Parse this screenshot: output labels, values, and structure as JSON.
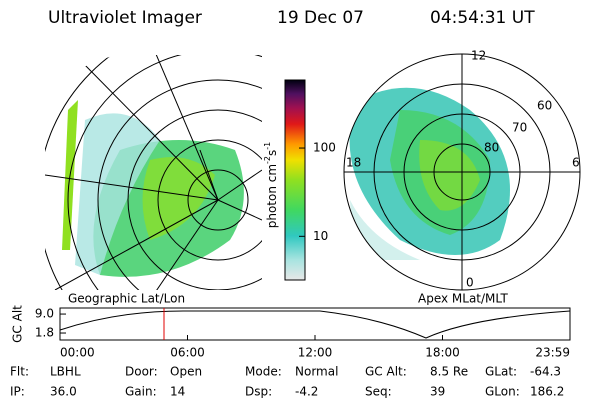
{
  "header": {
    "title": "Ultraviolet Imager",
    "date": "19 Dec 07",
    "time": "04:54:31 UT"
  },
  "colorbar": {
    "unit": {
      "base": "photon cm",
      "exp1": "-2",
      "s": "s",
      "exp2": "-1"
    },
    "clim": [
      3.2,
      590
    ],
    "ticks": [
      10,
      100
    ],
    "log": true
  },
  "left_panel": {
    "label": "Geographic Lat/Lon"
  },
  "right_panel": {
    "label": "Apex MLat/MLT",
    "mlt_labels": [
      "12",
      "6",
      "18",
      "0"
    ],
    "lat_labels": [
      "60",
      "70",
      "80"
    ]
  },
  "alt_plot": {
    "axis_label": "GC Alt",
    "ylim": [
      -0.85,
      11.3
    ],
    "yticks": [
      {
        "value": 9,
        "label": "9.0"
      },
      1.8
    ],
    "xtick_labels": [
      "00:00",
      "06:00",
      "12:00",
      "18:00",
      "23:59"
    ]
  },
  "footer": [
    [
      {
        "label": "Flt:",
        "value": "LBHL"
      },
      {
        "label": "IP:",
        "value": "36.0"
      }
    ],
    [
      {
        "label": "Door:",
        "value": "Open"
      },
      {
        "label": "Gain:",
        "value": "14"
      }
    ],
    [
      {
        "label": "Mode:",
        "value": "Normal"
      },
      {
        "label": "Dsp:",
        "value": "-4.2"
      }
    ],
    [
      {
        "label": "GC Alt:",
        "value": "8.5 Re"
      },
      {
        "label": "Seq:",
        "value": "39"
      }
    ],
    [
      {
        "label": "GLat:",
        "value": "-64.3"
      },
      {
        "label": "GLon:",
        "value": "186.2"
      }
    ]
  ]
}
